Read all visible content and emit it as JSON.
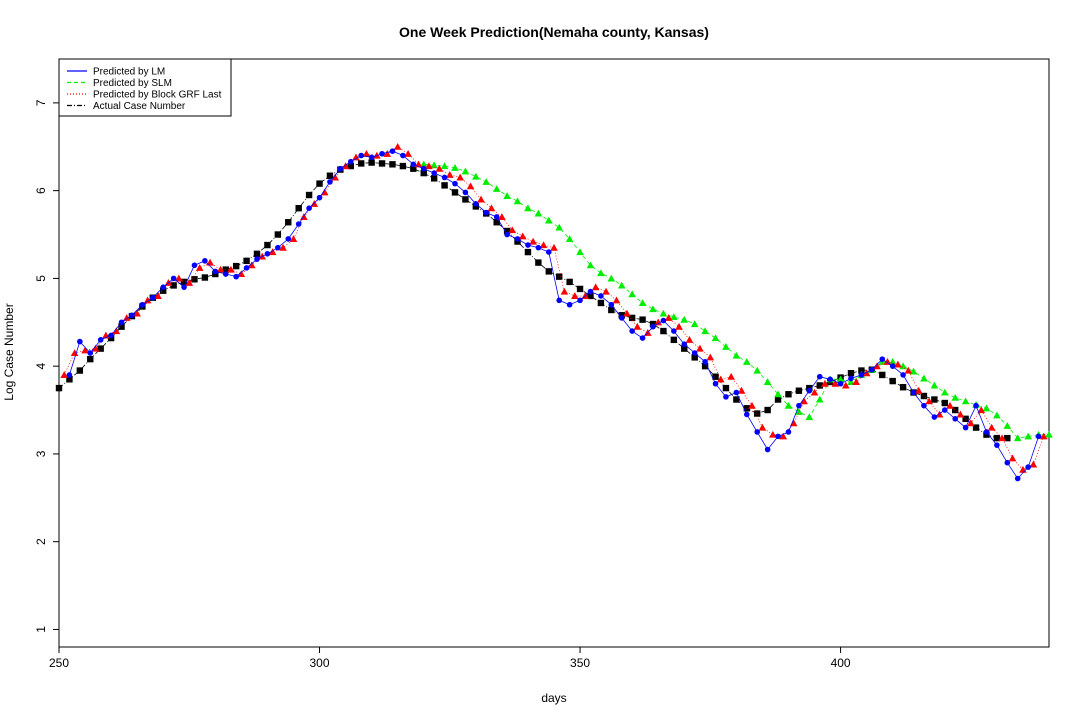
{
  "chart_data": {
    "type": "scatter",
    "title": "One Week Prediction(Nemaha county, Kansas)",
    "xlabel": "days",
    "ylabel": "Log Case Number",
    "xlim": [
      250,
      440
    ],
    "ylim": [
      0.8,
      7.5
    ],
    "xticks": [
      250,
      300,
      350,
      400
    ],
    "yticks": [
      1,
      2,
      3,
      4,
      5,
      6,
      7
    ],
    "grid": false,
    "legend_position": "top-left",
    "colors": {
      "lm": "#0000ff",
      "slm": "#00ee00",
      "grf": "#ff0000",
      "actual": "#000000"
    },
    "legend": [
      {
        "label": "Predicted by LM",
        "color": "#0000ff",
        "style": "solid"
      },
      {
        "label": "Predicted by SLM",
        "color": "#00ee00",
        "style": "dashed"
      },
      {
        "label": "Predicted by Block GRF Last",
        "color": "#ff0000",
        "style": "dotted"
      },
      {
        "label": "Actual Case Number",
        "color": "#000000",
        "style": "dashdot"
      }
    ],
    "series": [
      {
        "name": "Actual Case Number",
        "marker": "square",
        "x": [
          250,
          252,
          254,
          256,
          258,
          260,
          262,
          264,
          266,
          268,
          270,
          272,
          274,
          276,
          278,
          280,
          282,
          284,
          286,
          288,
          290,
          292,
          294,
          296,
          298,
          300,
          302,
          304,
          306,
          308,
          310,
          312,
          314,
          316,
          318,
          320,
          322,
          324,
          326,
          328,
          330,
          332,
          334,
          336,
          338,
          340,
          342,
          344,
          346,
          348,
          350,
          352,
          354,
          356,
          358,
          360,
          362,
          364,
          366,
          368,
          370,
          372,
          374,
          376,
          378,
          380,
          382,
          384,
          386,
          388,
          390,
          392,
          394,
          396,
          398,
          400,
          402,
          404,
          406,
          408,
          410,
          412,
          414,
          416,
          418,
          420,
          422,
          424,
          426,
          428,
          430,
          432
        ],
        "values": [
          3.75,
          3.85,
          3.95,
          4.08,
          4.2,
          4.32,
          4.45,
          4.57,
          4.68,
          4.78,
          4.86,
          4.92,
          4.96,
          4.99,
          5.01,
          5.05,
          5.1,
          5.14,
          5.2,
          5.28,
          5.38,
          5.5,
          5.64,
          5.8,
          5.95,
          6.08,
          6.17,
          6.24,
          6.28,
          6.31,
          6.32,
          6.31,
          6.3,
          6.28,
          6.25,
          6.2,
          6.14,
          6.06,
          5.98,
          5.9,
          5.82,
          5.74,
          5.64,
          5.54,
          5.42,
          5.3,
          5.18,
          5.08,
          5.02,
          4.96,
          4.88,
          4.8,
          4.72,
          4.64,
          4.58,
          4.55,
          4.53,
          4.48,
          4.4,
          4.3,
          4.2,
          4.1,
          4.0,
          3.88,
          3.75,
          3.62,
          3.52,
          3.46,
          3.5,
          3.62,
          3.68,
          3.72,
          3.75,
          3.78,
          3.82,
          3.87,
          3.92,
          3.95,
          3.96,
          3.9,
          3.83,
          3.76,
          3.7,
          3.66,
          3.62,
          3.58,
          3.5,
          3.4,
          3.3,
          3.22,
          3.18,
          3.18
        ]
      },
      {
        "name": "Predicted by SLM",
        "marker": "triangle",
        "x": [
          320,
          322,
          324,
          326,
          328,
          330,
          332,
          334,
          336,
          338,
          340,
          342,
          344,
          346,
          348,
          350,
          352,
          354,
          356,
          358,
          360,
          362,
          364,
          366,
          368,
          370,
          372,
          374,
          376,
          378,
          380,
          382,
          384,
          386,
          388,
          390,
          392,
          394,
          396,
          398,
          400,
          402,
          404,
          406,
          408,
          410,
          412,
          414,
          416,
          418,
          420,
          422,
          424,
          426,
          428,
          430,
          432,
          434,
          436,
          438,
          440
        ],
        "values": [
          6.3,
          6.29,
          6.28,
          6.26,
          6.22,
          6.16,
          6.1,
          6.02,
          5.94,
          5.88,
          5.8,
          5.74,
          5.66,
          5.58,
          5.45,
          5.3,
          5.15,
          5.06,
          5.0,
          4.92,
          4.82,
          4.72,
          4.65,
          4.6,
          4.56,
          4.53,
          4.48,
          4.4,
          4.32,
          4.22,
          4.12,
          4.05,
          3.95,
          3.82,
          3.68,
          3.55,
          3.48,
          3.42,
          3.62,
          3.85,
          3.85,
          3.82,
          3.9,
          3.96,
          4.05,
          4.05,
          4.0,
          3.94,
          3.86,
          3.78,
          3.7,
          3.64,
          3.6,
          3.56,
          3.52,
          3.44,
          3.32,
          3.18,
          3.2,
          3.22,
          3.22
        ]
      },
      {
        "name": "Predicted by Block GRF Last",
        "marker": "triangle",
        "x": [
          251,
          253,
          255,
          257,
          259,
          261,
          263,
          265,
          267,
          269,
          271,
          273,
          275,
          277,
          279,
          281,
          283,
          285,
          287,
          289,
          291,
          293,
          295,
          297,
          299,
          301,
          303,
          305,
          307,
          309,
          311,
          313,
          315,
          317,
          319,
          321,
          323,
          325,
          327,
          329,
          331,
          333,
          335,
          337,
          339,
          341,
          343,
          345,
          347,
          349,
          351,
          353,
          355,
          357,
          359,
          361,
          363,
          365,
          367,
          369,
          371,
          373,
          375,
          377,
          379,
          381,
          383,
          385,
          387,
          389,
          391,
          393,
          395,
          397,
          399,
          401,
          403,
          405,
          407,
          409,
          411,
          413,
          415,
          417,
          419,
          421,
          423,
          425,
          427,
          429,
          431,
          433,
          435,
          437,
          439
        ],
        "values": [
          3.9,
          4.15,
          4.18,
          4.2,
          4.35,
          4.4,
          4.55,
          4.6,
          4.75,
          4.8,
          4.95,
          5.0,
          4.95,
          5.12,
          5.18,
          5.1,
          5.1,
          5.05,
          5.15,
          5.25,
          5.3,
          5.35,
          5.45,
          5.7,
          5.85,
          5.98,
          6.15,
          6.28,
          6.38,
          6.42,
          6.4,
          6.42,
          6.5,
          6.42,
          6.3,
          6.28,
          6.25,
          6.18,
          6.15,
          6.05,
          5.9,
          5.8,
          5.7,
          5.55,
          5.48,
          5.42,
          5.38,
          5.35,
          4.85,
          4.8,
          4.8,
          4.9,
          4.85,
          4.75,
          4.6,
          4.45,
          4.38,
          4.5,
          4.55,
          4.45,
          4.3,
          4.2,
          4.1,
          3.85,
          3.88,
          3.72,
          3.55,
          3.3,
          3.22,
          3.2,
          3.35,
          3.6,
          3.7,
          3.8,
          3.8,
          3.78,
          3.82,
          3.92,
          4.0,
          4.05,
          4.02,
          3.95,
          3.72,
          3.6,
          3.45,
          3.55,
          3.45,
          3.35,
          3.5,
          3.3,
          3.18,
          2.95,
          2.82,
          2.88,
          3.2
        ]
      },
      {
        "name": "Predicted by LM",
        "marker": "circle",
        "x": [
          252,
          254,
          256,
          258,
          260,
          262,
          264,
          266,
          268,
          270,
          272,
          274,
          276,
          278,
          280,
          282,
          284,
          286,
          288,
          290,
          292,
          294,
          296,
          298,
          300,
          302,
          304,
          306,
          308,
          310,
          312,
          314,
          316,
          318,
          320,
          322,
          324,
          326,
          328,
          330,
          332,
          334,
          336,
          338,
          340,
          342,
          344,
          346,
          348,
          350,
          352,
          354,
          356,
          358,
          360,
          362,
          364,
          366,
          368,
          370,
          372,
          374,
          376,
          378,
          380,
          382,
          384,
          386,
          388,
          390,
          392,
          394,
          396,
          398,
          400,
          402,
          404,
          406,
          408,
          410,
          412,
          414,
          416,
          418,
          420,
          422,
          424,
          426,
          428,
          430,
          432,
          434,
          436,
          438
        ],
        "values": [
          3.9,
          4.28,
          4.15,
          4.3,
          4.35,
          4.5,
          4.58,
          4.7,
          4.78,
          4.9,
          5.0,
          4.9,
          5.15,
          5.2,
          5.08,
          5.05,
          5.02,
          5.12,
          5.22,
          5.28,
          5.35,
          5.45,
          5.62,
          5.8,
          5.92,
          6.1,
          6.25,
          6.33,
          6.4,
          6.38,
          6.42,
          6.45,
          6.4,
          6.3,
          6.25,
          6.2,
          6.15,
          6.08,
          5.98,
          5.85,
          5.75,
          5.7,
          5.5,
          5.45,
          5.38,
          5.35,
          5.3,
          4.75,
          4.7,
          4.75,
          4.85,
          4.8,
          4.7,
          4.55,
          4.4,
          4.32,
          4.45,
          4.52,
          4.4,
          4.25,
          4.15,
          4.05,
          3.8,
          3.65,
          3.7,
          3.45,
          3.25,
          3.05,
          3.2,
          3.25,
          3.55,
          3.72,
          3.88,
          3.85,
          3.8,
          3.86,
          3.9,
          3.96,
          4.08,
          4.0,
          3.9,
          3.7,
          3.55,
          3.42,
          3.5,
          3.4,
          3.3,
          3.55,
          3.25,
          3.1,
          2.9,
          2.72,
          2.85,
          3.2
        ]
      }
    ]
  }
}
